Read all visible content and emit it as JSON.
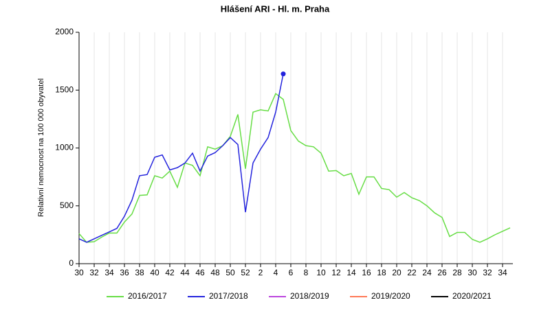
{
  "chart_data": {
    "type": "line",
    "title": "Hlášení ARI  -  Hl. m. Praha",
    "y_label": "Relativní nemocnost na 100 000 obyvatel",
    "categories": [
      "30",
      null,
      "32",
      null,
      "34",
      null,
      "36",
      null,
      "38",
      null,
      "40",
      null,
      "42",
      null,
      "44",
      null,
      "46",
      null,
      "48",
      null,
      "50",
      null,
      "52",
      null,
      "2",
      null,
      "4",
      null,
      "6",
      null,
      "8",
      null,
      "10",
      null,
      "12",
      null,
      "14",
      null,
      "16",
      null,
      "18",
      null,
      "20",
      null,
      "22",
      null,
      "24",
      null,
      "26",
      null,
      "28",
      null,
      "30",
      null,
      "32",
      null,
      "34",
      null
    ],
    "ylim": [
      0,
      2000
    ],
    "yticks": [
      0,
      500,
      1000,
      1500,
      2000
    ],
    "grid": "x",
    "legend": "bottom",
    "series": [
      {
        "name": "2016/2017",
        "color": "#66dd44",
        "values": [
          260,
          185,
          190,
          230,
          265,
          265,
          360,
          430,
          590,
          595,
          760,
          740,
          800,
          660,
          870,
          850,
          760,
          1010,
          990,
          1020,
          1100,
          1290,
          820,
          1310,
          1330,
          1320,
          1470,
          1420,
          1150,
          1060,
          1020,
          1010,
          955,
          800,
          805,
          760,
          780,
          600,
          750,
          750,
          650,
          640,
          575,
          615,
          570,
          545,
          500,
          440,
          400,
          235,
          270,
          270,
          210,
          185,
          215,
          250,
          280,
          310
        ]
      },
      {
        "name": "2017/2018",
        "color": "#2222dd",
        "marker": "last",
        "values": [
          215,
          185,
          215,
          245,
          275,
          305,
          410,
          550,
          760,
          770,
          920,
          940,
          810,
          830,
          870,
          955,
          800,
          930,
          960,
          1020,
          1090,
          1030,
          445,
          870,
          990,
          1090,
          1310,
          1640,
          null,
          null,
          null,
          null,
          null,
          null,
          null,
          null,
          null,
          null,
          null,
          null,
          null,
          null,
          null,
          null,
          null,
          null,
          null,
          null,
          null,
          null,
          null,
          null,
          null,
          null,
          null,
          null,
          null,
          null
        ]
      },
      {
        "name": "2018/2019",
        "color": "#bb44dd",
        "values": [
          null,
          null,
          null,
          null,
          null,
          null,
          null,
          null,
          null,
          null,
          null,
          null,
          null,
          null,
          null,
          null,
          null,
          null,
          null,
          null,
          null,
          null,
          null,
          null,
          null,
          null,
          null,
          null,
          null,
          null,
          null,
          null,
          null,
          null,
          null,
          null,
          null,
          null,
          null,
          null,
          null,
          null,
          null,
          null,
          null,
          null,
          null,
          null,
          null,
          null,
          null,
          null,
          null,
          null,
          null,
          null,
          null,
          null
        ]
      },
      {
        "name": "2019/2020",
        "color": "#ff7755",
        "values": [
          null,
          null,
          null,
          null,
          null,
          null,
          null,
          null,
          null,
          null,
          null,
          null,
          null,
          null,
          null,
          null,
          null,
          null,
          null,
          null,
          null,
          null,
          null,
          null,
          null,
          null,
          null,
          null,
          null,
          null,
          null,
          null,
          null,
          null,
          null,
          null,
          null,
          null,
          null,
          null,
          null,
          null,
          null,
          null,
          null,
          null,
          null,
          null,
          null,
          null,
          null,
          null,
          null,
          null,
          null,
          null,
          null,
          null
        ]
      },
      {
        "name": "2020/2021",
        "color": "#000000",
        "values": [
          null,
          null,
          null,
          null,
          null,
          null,
          null,
          null,
          null,
          null,
          null,
          null,
          null,
          null,
          null,
          null,
          null,
          null,
          null,
          null,
          null,
          null,
          null,
          null,
          null,
          null,
          null,
          null,
          null,
          null,
          null,
          null,
          null,
          null,
          null,
          null,
          null,
          null,
          null,
          null,
          null,
          null,
          null,
          null,
          null,
          null,
          null,
          null,
          null,
          null,
          null,
          null,
          null,
          null,
          null,
          null,
          null,
          null
        ]
      }
    ]
  }
}
